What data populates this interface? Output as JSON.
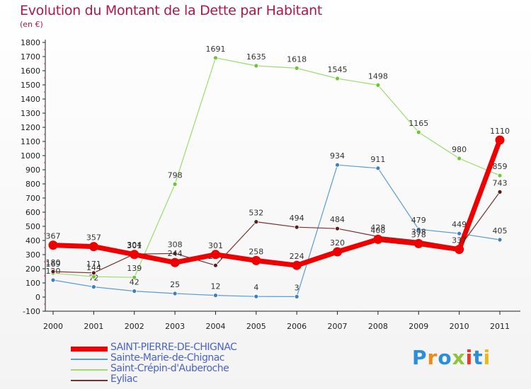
{
  "header": {
    "title": "Evolution du Montant de la Dette par Habitant",
    "subtitle": "(en €)"
  },
  "logo": {
    "text": "Proxiti"
  },
  "chart_data": {
    "type": "line",
    "title": "Evolution du Montant de la Dette par Habitant",
    "subtitle": "(en €)",
    "xlabel": "",
    "ylabel": "",
    "x": [
      "2000",
      "2001",
      "2002",
      "2003",
      "2004",
      "2005",
      "2006",
      "2007",
      "2008",
      "2009",
      "2010",
      "2011"
    ],
    "ylim": [
      -100,
      1800
    ],
    "yticks": [
      -100,
      0,
      100,
      200,
      300,
      400,
      500,
      600,
      700,
      800,
      900,
      1000,
      1100,
      1200,
      1300,
      1400,
      1500,
      1600,
      1700,
      1800
    ],
    "grid": false,
    "legend_position": "bottom-left",
    "series": [
      {
        "name": "Sainte-Marie-de-Chignac",
        "color": "#5b9bd5",
        "marker": "#3d7fc0",
        "values": [
          120,
          72,
          42,
          25,
          12,
          4,
          3,
          934,
          911,
          479,
          449,
          405
        ],
        "labels": [
          "120",
          "72",
          "42",
          "25",
          "12",
          "4",
          "3",
          "934",
          "911",
          "479",
          "449",
          "405"
        ]
      },
      {
        "name": "Saint-Crépin-d'Auberoche",
        "color": "#9bdc6e",
        "marker": "#6fc43a",
        "values": [
          169,
          144,
          139,
          798,
          1691,
          1635,
          1618,
          1545,
          1498,
          1165,
          980,
          859
        ],
        "labels": [
          "169",
          "144",
          "139",
          "798",
          "1691",
          "1635",
          "1618",
          "1545",
          "1498",
          "1165",
          "980",
          "859"
        ]
      },
      {
        "name": "Eyliac",
        "color": "#7a3030",
        "marker": "#5c1a1a",
        "values": [
          180,
          171,
          304,
          308,
          224,
          532,
          494,
          484,
          428,
          398,
          350,
          743
        ],
        "labels": [
          "180",
          "171",
          "304",
          "308",
          "224",
          "532",
          "494",
          "484",
          "428",
          "398",
          "",
          "743"
        ]
      },
      {
        "name": "SAINT-PIERRE-DE-CHIGNAC",
        "color": "#ee0000",
        "marker": "#ee0000",
        "values": [
          367,
          357,
          301,
          244,
          301,
          258,
          224,
          320,
          408,
          378,
          337,
          1110
        ],
        "labels": [
          "367",
          "357",
          "301",
          "244",
          "301",
          "258",
          "224",
          "320",
          "408",
          "378",
          "337",
          "1110"
        ]
      }
    ]
  },
  "legend": {
    "items": [
      {
        "label": "SAINT-PIERRE-DE-CHIGNAC",
        "color": "#ee0000"
      },
      {
        "label": "Sainte-Marie-de-Chignac",
        "color": "#5b9bd5"
      },
      {
        "label": "Saint-Crépin-d'Auberoche",
        "color": "#9bdc6e"
      },
      {
        "label": "Eyliac",
        "color": "#7a3030"
      }
    ]
  }
}
